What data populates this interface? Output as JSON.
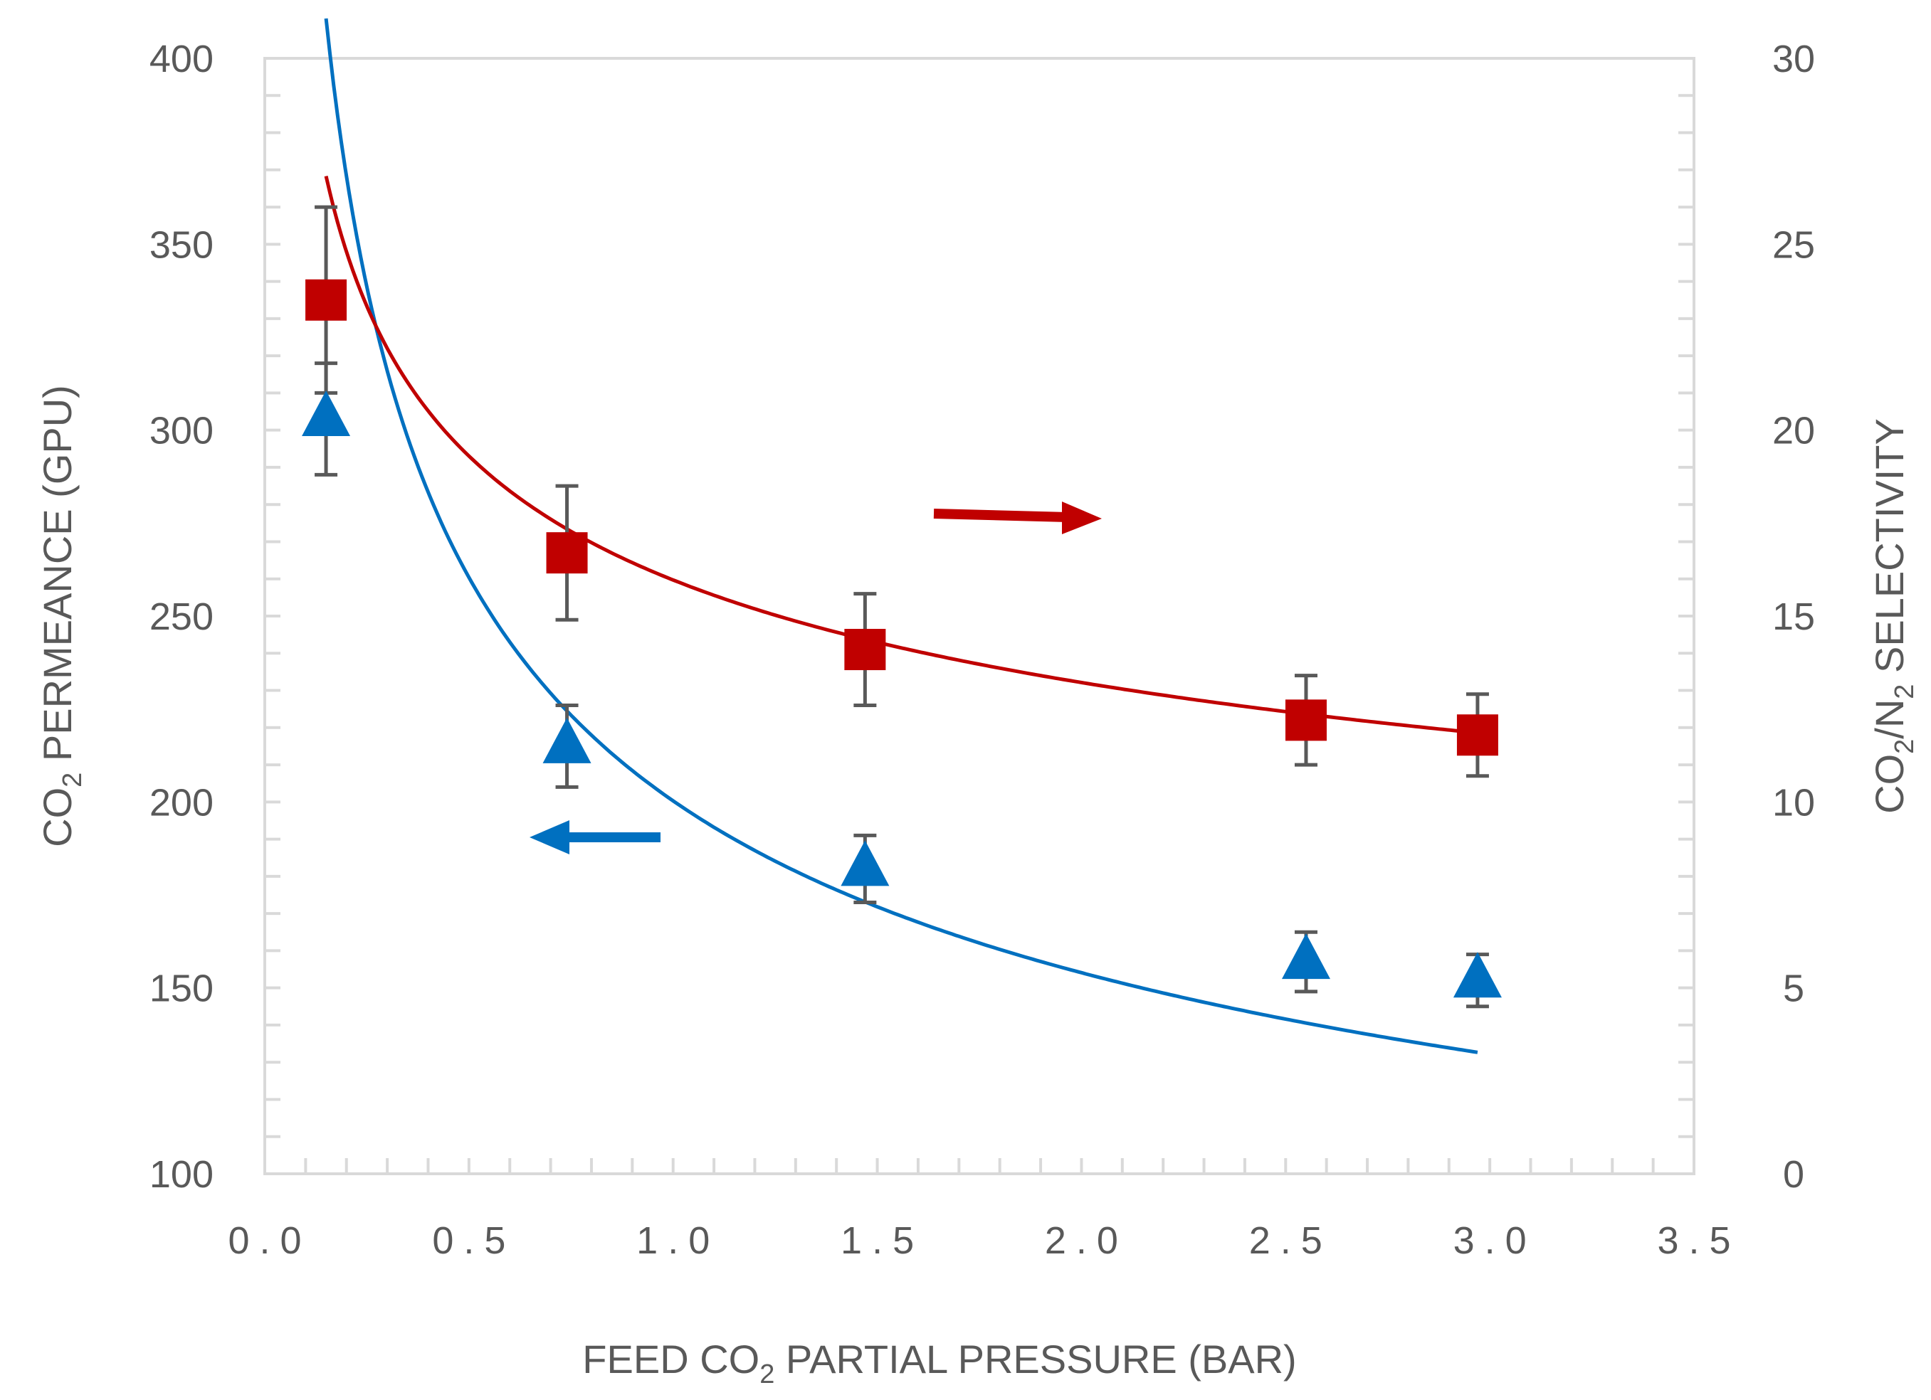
{
  "chart_data": {
    "type": "scatter",
    "title": "",
    "xlabel": {
      "pre": "FEED CO",
      "sub": "2",
      "post": " PARTIAL PRESSURE (BAR)"
    },
    "ylabel_left": {
      "pre": "CO",
      "sub": "2",
      "post": " PERMEANCE (GPU)"
    },
    "ylabel_right": {
      "pre": "CO",
      "sub": "2",
      "mid": "/N",
      "sub2": "2",
      "post": " SELECTIVITY"
    },
    "xlim": [
      0.0,
      3.5
    ],
    "ylim_left": [
      100,
      400
    ],
    "ylim_right": [
      0,
      30
    ],
    "x_ticks": [
      "0.0",
      "0.5",
      "1.0",
      "1.5",
      "2.0",
      "2.5",
      "3.0",
      "3.5"
    ],
    "y_left_ticks": [
      "100",
      "150",
      "200",
      "250",
      "300",
      "350",
      "400"
    ],
    "y_right_ticks": [
      "0",
      "5",
      "10",
      "15",
      "20",
      "25",
      "30"
    ],
    "grid": false,
    "series": [
      {
        "name": "CO2 permeance",
        "axis": "left",
        "marker": "triangle",
        "color": "#0070C0",
        "x": [
          0.15,
          0.74,
          1.47,
          2.55,
          2.97
        ],
        "y": [
          303,
          215,
          182,
          157,
          152
        ],
        "err": [
          15,
          11,
          9,
          8,
          7
        ],
        "fit": {
          "a": 200.3,
          "b": -0.3785
        }
      },
      {
        "name": "CO2/N2 selectivity",
        "axis": "right",
        "marker": "square",
        "color": "#C00000",
        "x": [
          0.15,
          0.74,
          1.47,
          2.55,
          2.97
        ],
        "y": [
          23.5,
          16.7,
          14.1,
          12.2,
          11.8
        ],
        "err": [
          2.5,
          1.8,
          1.5,
          1.2,
          1.1
        ],
        "fit": {
          "a": 15.97,
          "b": -0.2735
        }
      }
    ],
    "annotations": [
      {
        "type": "arrow",
        "direction": "right",
        "color": "#C00000",
        "meaning": "selectivity series reads right axis"
      },
      {
        "type": "arrow",
        "direction": "left",
        "color": "#0070C0",
        "meaning": "permeance series reads left axis"
      }
    ]
  }
}
